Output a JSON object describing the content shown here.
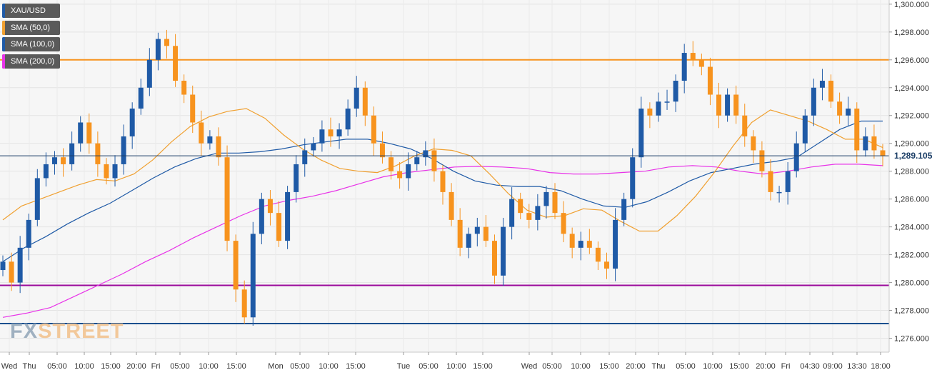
{
  "chart_data": {
    "type": "candlestick",
    "symbol": "XAU/USD",
    "last_price": "1,289.105",
    "y_ticks": [
      "1,276.000",
      "1,278.000",
      "1,280.000",
      "1,282.000",
      "1,284.000",
      "1,286.000",
      "1,288.000",
      "1,290.000",
      "1,292.000",
      "1,294.000",
      "1,296.000",
      "1,298.000",
      "1,300.000"
    ],
    "ylim": [
      1275,
      1300.3
    ],
    "x_ticks": [
      "Wed",
      "Thu",
      "05:00",
      "10:00",
      "15:00",
      "20:00",
      "Fri",
      "05:00",
      "10:00",
      "15:00",
      "Mon",
      "05:00",
      "10:00",
      "15:00",
      "Tue",
      "05:00",
      "10:00",
      "15:00",
      "Wed",
      "05:00",
      "10:00",
      "15:00",
      "20:00",
      "Thu",
      "05:00",
      "10:00",
      "15:00",
      "20:00",
      "Fri",
      "04:30",
      "09:00",
      "13:30",
      "18:00"
    ],
    "legend": [
      {
        "label": "XAU/USD",
        "color": "#1f5aa6"
      },
      {
        "label": "SMA (50,0)",
        "color": "#f0a030"
      },
      {
        "label": "SMA (100,0)",
        "color": "#1f5aa6"
      },
      {
        "label": "SMA (200,0)",
        "color": "#e833e8"
      }
    ],
    "horizontal_levels": [
      {
        "value": 1296.0,
        "color": "#f7931e"
      },
      {
        "value": 1279.8,
        "color": "#9b0a9b"
      },
      {
        "value": 1277.05,
        "color": "#1a4f8e"
      }
    ],
    "close_series": [
      1281.5,
      1280.0,
      1282.5,
      1284.5,
      1287.5,
      1288.5,
      1289.0,
      1288.5,
      1290.0,
      1291.5,
      1290.0,
      1288.5,
      1287.5,
      1288.5,
      1290.5,
      1292.5,
      1294.0,
      1296.0,
      1297.5,
      1297.0,
      1294.5,
      1293.5,
      1291.5,
      1290.0,
      1290.5,
      1289.0,
      1283.0,
      1279.5,
      1277.5,
      1283.5,
      1286.0,
      1285.0,
      1283.0,
      1286.5,
      1288.5,
      1289.5,
      1290.0,
      1291.0,
      1290.5,
      1291.0,
      1292.5,
      1294.0,
      1292.0,
      1290.0,
      1289.0,
      1288.0,
      1287.5,
      1288.5,
      1289.0,
      1289.5,
      1288.0,
      1286.5,
      1284.5,
      1282.5,
      1283.5,
      1284.0,
      1283.0,
      1280.5,
      1284.0,
      1286.0,
      1285.0,
      1284.5,
      1285.5,
      1286.5,
      1285.0,
      1283.5,
      1282.5,
      1283.0,
      1282.5,
      1281.5,
      1281.0,
      1284.5,
      1286.0,
      1289.0,
      1292.5,
      1292.0,
      1293.0,
      1293.0,
      1294.5,
      1296.5,
      1296.0,
      1295.5,
      1293.5,
      1292.0,
      1293.5,
      1292.0,
      1290.5,
      1289.5,
      1288.0,
      1286.5,
      1286.5,
      1288.0,
      1290.0,
      1292.0,
      1294.0,
      1294.5,
      1293.0,
      1292.0,
      1292.5,
      1289.5,
      1290.5,
      1289.5,
      1289.1
    ],
    "sma50": [
      1284.5,
      1285.5,
      1286.0,
      1286.5,
      1287.0,
      1287.4,
      1287.3,
      1287.8,
      1288.8,
      1290.1,
      1291.2,
      1291.9,
      1292.3,
      1292.5,
      1291.8,
      1290.6,
      1289.6,
      1288.8,
      1288.2,
      1288.0,
      1287.9,
      1288.4,
      1289.1,
      1289.6,
      1289.5,
      1289.1,
      1287.8,
      1286.4,
      1285.2,
      1284.7,
      1284.8,
      1285.3,
      1285.2,
      1284.4,
      1283.7,
      1283.7,
      1284.8,
      1286.2,
      1287.9,
      1289.8,
      1291.5,
      1292.4,
      1292.0,
      1291.6,
      1291.0,
      1290.3,
      1290.3,
      1289.7
    ],
    "sma100": [
      1281.5,
      1282.5,
      1283.3,
      1284.2,
      1285.0,
      1285.7,
      1286.6,
      1287.5,
      1288.3,
      1288.9,
      1289.3,
      1289.3,
      1289.4,
      1289.6,
      1289.9,
      1290.1,
      1290.3,
      1290.3,
      1290.0,
      1289.6,
      1288.9,
      1288.0,
      1287.3,
      1287.0,
      1286.9,
      1286.9,
      1286.6,
      1286.0,
      1285.5,
      1285.4,
      1285.8,
      1286.5,
      1287.3,
      1287.9,
      1288.2,
      1288.5,
      1288.7,
      1289.0,
      1290.0,
      1291.0,
      1291.6,
      1291.6
    ],
    "sma200": [
      1277.5,
      1277.8,
      1278.2,
      1279.0,
      1279.8,
      1280.6,
      1281.5,
      1282.3,
      1283.2,
      1284.0,
      1284.8,
      1285.5,
      1285.9,
      1286.2,
      1286.6,
      1287.1,
      1287.6,
      1287.9,
      1288.1,
      1288.3,
      1288.35,
      1288.3,
      1288.2,
      1287.9,
      1287.8,
      1287.8,
      1287.9,
      1288.0,
      1288.3,
      1288.4,
      1288.3,
      1288.0,
      1287.8,
      1288.0,
      1288.3,
      1288.5,
      1288.5,
      1288.4
    ]
  }
}
